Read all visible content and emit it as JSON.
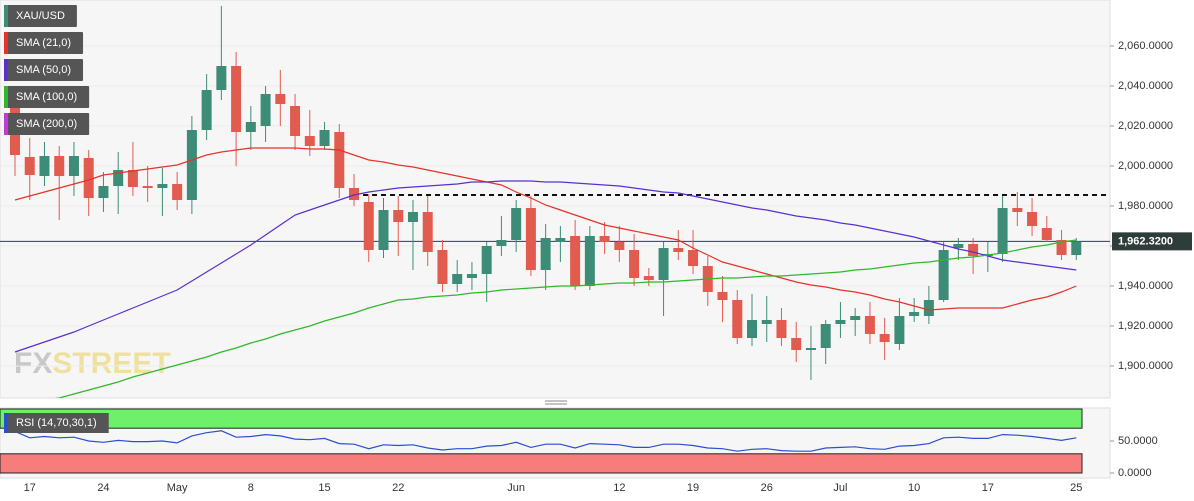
{
  "chart_data": {
    "type": "candlestick",
    "symbol": "XAU/USD",
    "categories": [
      null,
      "17",
      null,
      null,
      null,
      null,
      "24",
      null,
      null,
      null,
      null,
      "May",
      null,
      null,
      null,
      null,
      "8",
      null,
      null,
      null,
      null,
      "15",
      null,
      null,
      null,
      null,
      "22",
      null,
      null,
      null,
      null,
      null,
      null,
      null,
      "Jun",
      null,
      null,
      null,
      null,
      null,
      null,
      "12",
      null,
      null,
      null,
      null,
      "19",
      null,
      null,
      null,
      null,
      "26",
      null,
      null,
      null,
      null,
      "Jul",
      null,
      null,
      null,
      null,
      "10",
      null,
      null,
      null,
      null,
      "17",
      null,
      null,
      null,
      null,
      null,
      "25"
    ],
    "open": [
      2033,
      2004.5,
      1995,
      2005,
      1995,
      2004,
      1984,
      1990,
      1998,
      1990,
      1989,
      1991,
      1983,
      2018,
      2038,
      2050,
      2017,
      2020,
      2036,
      2030,
      2015,
      2010,
      2017,
      1989,
      1982,
      1958,
      1978,
      1972,
      1977,
      1958,
      1941,
      1944,
      1946,
      1960,
      1963,
      1979,
      1948,
      1962,
      1965,
      1940,
      1965,
      1962,
      1958,
      1945,
      1943,
      1959,
      1958,
      1950,
      1937,
      1933,
      1914,
      1921,
      1923,
      1914,
      1908,
      1909,
      1921,
      1923,
      1925,
      1916,
      1911,
      1925,
      1925,
      1933,
      1959,
      1961,
      1955,
      1956,
      1979,
      1977,
      1969,
      1963,
      1955.5
    ],
    "high": [
      2038,
      2014,
      2012,
      2010,
      2012,
      2008,
      1997,
      2007,
      2012,
      2000,
      1999,
      1997,
      2025,
      2046,
      2080,
      2057,
      2030,
      2040,
      2048,
      2036,
      2028,
      2022,
      2021,
      1996,
      1986,
      1984,
      1985,
      1983,
      1985,
      1963,
      1953,
      1952,
      1962,
      1975,
      1983,
      1985,
      1971,
      1970,
      1973,
      1970,
      1972,
      1970,
      1966,
      1949,
      1962,
      1968,
      1968,
      1955,
      1945,
      1938,
      1936,
      1935,
      1929,
      1922,
      1920,
      1923,
      1932,
      1929,
      1932,
      1924,
      1934,
      1934,
      1940,
      1962,
      1964,
      1964,
      1962,
      1985,
      1987,
      1984,
      1975,
      1968,
      1964
    ],
    "low": [
      1995,
      1983,
      1990,
      1973,
      1985,
      1975,
      1977,
      1976,
      1985,
      1982,
      1975,
      1978,
      1976,
      2013,
      2033,
      2000,
      2008,
      2012,
      2020,
      2008,
      2005,
      2008,
      1984,
      1980,
      1952,
      1954,
      1955,
      1948,
      1950,
      1937,
      1937,
      1938,
      1932,
      1955,
      1957,
      1945,
      1938,
      1952,
      1938,
      1938,
      1956,
      1952,
      1940,
      1940,
      1925,
      1953,
      1946,
      1930,
      1922,
      1911,
      1910,
      1912,
      1910,
      1902,
      1893,
      1901,
      1914,
      1915,
      1911,
      1903,
      1908,
      1922,
      1921,
      1932,
      1953,
      1946,
      1947,
      1952,
      1970,
      1965,
      1962,
      1953,
      1953
    ],
    "close": [
      2005.5,
      1995.5,
      2005,
      1995,
      2005,
      1984,
      1990,
      1998,
      1989.5,
      1989,
      1991,
      1983,
      2018,
      2038,
      2050,
      2017,
      2022,
      2036,
      2031,
      2015,
      2010,
      2018,
      1989,
      1983,
      1958,
      1978,
      1972,
      1977,
      1957,
      1941,
      1946,
      1946,
      1960,
      1963,
      1979,
      1948,
      1964,
      1964,
      1940,
      1965,
      1962,
      1958,
      1944,
      1943,
      1959,
      1957,
      1950,
      1937,
      1933,
      1914,
      1923,
      1923,
      1914,
      1908,
      1909,
      1921,
      1923,
      1925,
      1916,
      1912,
      1925,
      1927,
      1933,
      1958,
      1961,
      1955,
      1956,
      1979,
      1977,
      1970,
      1963,
      1955.5,
      1962.32
    ],
    "up_color": "#3d8c78",
    "down_color": "#e25b4f",
    "series": [
      {
        "name": "SMA (21,0)",
        "color": "#e8312a",
        "values": [
          1983,
          1985,
          1987,
          1989,
          1991,
          1993,
          1995.5,
          1996.5,
          1997.5,
          1998.5,
          1999.5,
          2000.5,
          2003,
          2005.5,
          2007,
          2008,
          2009,
          2009,
          2009,
          2009,
          2008.5,
          2008.5,
          2008,
          2005.5,
          2003,
          2002,
          2000.5,
          1999.5,
          1998,
          1996.5,
          1995,
          1993.5,
          1992,
          1990.5,
          1987,
          1984,
          1980.5,
          1978,
          1975.5,
          1973,
          1970.5,
          1969,
          1967.5,
          1966,
          1964.5,
          1963,
          1959,
          1955.5,
          1952,
          1950,
          1948,
          1946,
          1944,
          1942,
          1940.5,
          1939.5,
          1938,
          1937,
          1935.5,
          1933.5,
          1932,
          1930,
          1928,
          1928.5,
          1929,
          1929,
          1929,
          1929,
          1931,
          1933,
          1934.5,
          1937,
          1940
        ]
      },
      {
        "name": "SMA (50,0)",
        "color": "#5a2fd0",
        "values": [
          1907,
          1909.5,
          1912,
          1914.5,
          1917,
          1920,
          1923,
          1926,
          1929,
          1932,
          1935,
          1938,
          1942.5,
          1947,
          1951.5,
          1956,
          1960.5,
          1965.5,
          1970.5,
          1975.5,
          1978,
          1980.5,
          1983,
          1985.5,
          1987,
          1988,
          1989,
          1989.5,
          1990,
          1990.5,
          1991,
          1992,
          1992,
          1992.5,
          1992.5,
          1992.5,
          1992,
          1992,
          1991.5,
          1991,
          1990.5,
          1990,
          1989,
          1988,
          1987,
          1986.5,
          1985,
          1983.5,
          1982,
          1980.5,
          1979,
          1978,
          1976.5,
          1975,
          1974,
          1973,
          1971.5,
          1970.5,
          1969,
          1967.5,
          1966,
          1964.5,
          1962.5,
          1960.5,
          1958.5,
          1957,
          1955,
          1953,
          1952,
          1951,
          1950,
          1949,
          1948
        ]
      },
      {
        "name": "SMA (100,0)",
        "color": "#2fb82a",
        "values": [
          1880,
          1881.5,
          1883,
          1884,
          1886,
          1888,
          1890,
          1892,
          1894.5,
          1896.5,
          1898.5,
          1900.5,
          1902.5,
          1904.5,
          1907,
          1909,
          1911.5,
          1913.5,
          1916,
          1918,
          1920,
          1922.5,
          1924.5,
          1926.5,
          1929,
          1931,
          1933,
          1933.5,
          1934.5,
          1935,
          1935.5,
          1936.5,
          1937,
          1938,
          1938.5,
          1939,
          1939.5,
          1940,
          1940,
          1940.5,
          1941,
          1941.5,
          1941.5,
          1942,
          1942,
          1942.5,
          1943,
          1943.5,
          1944,
          1944,
          1944.5,
          1945,
          1945,
          1945.5,
          1946,
          1946.5,
          1947,
          1948,
          1948.5,
          1949.5,
          1950.5,
          1951.5,
          1952,
          1953,
          1954,
          1954.5,
          1955.5,
          1956.5,
          1958,
          1959.5,
          1960.5,
          1962,
          1963
        ]
      },
      {
        "name": "SMA (200,0)",
        "color": "#c23ad8",
        "values": [
          null,
          null,
          null,
          null,
          null,
          null,
          null,
          null,
          null,
          null,
          null,
          null,
          null,
          null,
          null,
          null,
          null,
          null,
          null,
          null,
          null,
          null,
          null,
          null,
          null,
          null,
          null,
          null,
          null,
          null,
          null,
          null,
          null,
          null,
          null,
          null,
          null,
          null,
          null,
          null,
          null,
          null,
          null,
          null,
          null,
          null,
          null,
          null,
          null,
          null,
          null,
          null,
          null,
          null,
          null,
          null,
          null,
          null,
          null,
          null,
          null,
          null,
          null,
          null,
          null,
          null,
          null,
          null,
          null,
          null,
          null,
          null,
          null
        ]
      }
    ],
    "ylim": [
      1884,
      2083
    ],
    "yticks": [
      {
        "value": 1900,
        "label": "1,900.0000"
      },
      {
        "value": 1920,
        "label": "1,920.0000"
      },
      {
        "value": 1940,
        "label": "1,940.0000"
      },
      {
        "value": 1960,
        "label": "1,960.0000"
      },
      {
        "value": 1980,
        "label": "1,980.0000"
      },
      {
        "value": 2000,
        "label": "2,000.0000"
      },
      {
        "value": 2020,
        "label": "2,020.0000"
      },
      {
        "value": 2040,
        "label": "2,040.0000"
      },
      {
        "value": 2060,
        "label": "2,060.0000"
      }
    ],
    "last_price": {
      "value": 1962.32,
      "label": "1,962.3200"
    },
    "resistance": {
      "value": 1985.5,
      "start_index": 23
    },
    "watermark": [
      "FX",
      "STREET"
    ],
    "rsi": {
      "name": "RSI (14,70,30,1)",
      "color": "#2a4fd0",
      "overbought": 70,
      "oversold": 30,
      "ylim": [
        0,
        100
      ],
      "yticks": [
        {
          "value": 0,
          "label": "0.0000"
        },
        {
          "value": 50,
          "label": "50.0000"
        }
      ],
      "values": [
        65,
        55,
        57,
        55,
        56,
        50,
        48,
        51,
        49,
        49,
        50,
        47,
        58,
        63,
        66,
        56,
        57,
        60,
        58,
        53,
        52,
        54,
        46,
        45,
        38,
        44,
        43,
        44,
        39,
        36,
        38,
        38,
        42,
        43,
        48,
        40,
        45,
        45,
        39,
        46,
        45,
        44,
        40,
        40,
        45,
        45,
        43,
        39,
        38,
        34,
        37,
        38,
        35,
        34,
        34,
        39,
        40,
        41,
        38,
        37,
        42,
        43,
        46,
        55,
        56,
        54,
        54,
        60,
        59,
        57,
        54,
        51,
        55
      ]
    }
  }
}
